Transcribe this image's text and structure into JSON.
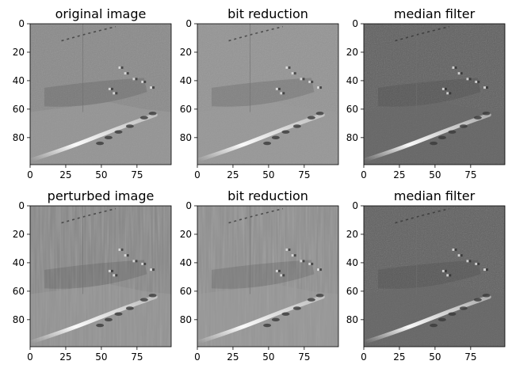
{
  "chart_data": [
    {
      "type": "image",
      "title": "original image",
      "tone": "mid",
      "xticks": [
        0,
        25,
        50,
        75
      ],
      "yticks": [
        0,
        20,
        40,
        60,
        80
      ],
      "xlim": [
        0,
        99
      ],
      "ylim": [
        99,
        0
      ]
    },
    {
      "type": "image",
      "title": "bit reduction",
      "tone": "quant",
      "xticks": [
        0,
        25,
        50,
        75
      ],
      "yticks": [
        0,
        20,
        40,
        60,
        80
      ],
      "xlim": [
        0,
        99
      ],
      "ylim": [
        99,
        0
      ]
    },
    {
      "type": "image",
      "title": "median filter",
      "tone": "dark",
      "xticks": [
        0,
        25,
        50,
        75
      ],
      "yticks": [
        0,
        20,
        40,
        60,
        80
      ],
      "xlim": [
        0,
        99
      ],
      "ylim": [
        99,
        0
      ]
    },
    {
      "type": "image",
      "title": "perturbed image",
      "tone": "perturbed",
      "xticks": [
        0,
        25,
        50,
        75
      ],
      "yticks": [
        0,
        20,
        40,
        60,
        80
      ],
      "xlim": [
        0,
        99
      ],
      "ylim": [
        99,
        0
      ]
    },
    {
      "type": "image",
      "title": "bit reduction",
      "tone": "perturbed-quant",
      "xticks": [
        0,
        25,
        50,
        75
      ],
      "yticks": [
        0,
        20,
        40,
        60,
        80
      ],
      "xlim": [
        0,
        99
      ],
      "ylim": [
        99,
        0
      ]
    },
    {
      "type": "image",
      "title": "median filter",
      "tone": "dark",
      "xticks": [
        0,
        25,
        50,
        75
      ],
      "yticks": [
        0,
        20,
        40,
        60,
        80
      ],
      "xlim": [
        0,
        99
      ],
      "ylim": [
        99,
        0
      ]
    }
  ],
  "colors": {
    "mid": "#8a8a8a",
    "quant": "#949494",
    "dark": "#5f5f5f",
    "perturbed": "#878787",
    "perturbed-quant": "#8e8e8e",
    "streak": "#f2f2f2",
    "shadow": "#3a3a3a",
    "lower": "#9c9c9c"
  }
}
